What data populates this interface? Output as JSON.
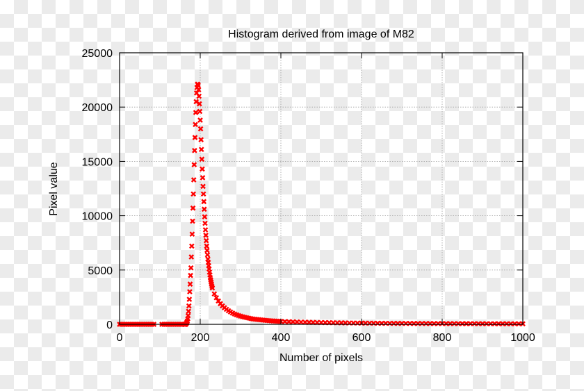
{
  "chart_data": {
    "type": "scatter",
    "title": "Histogram derived from image of M82",
    "xlabel": "Number of pixels",
    "ylabel": "Pixel value",
    "xlim": [
      0,
      1000
    ],
    "ylim": [
      0,
      25000
    ],
    "xticks": [
      0,
      200,
      400,
      600,
      800,
      1000
    ],
    "yticks": [
      0,
      5000,
      10000,
      15000,
      20000,
      25000
    ],
    "xtick_labels": [
      "0",
      "200",
      "400",
      "600",
      "800",
      "1000"
    ],
    "ytick_labels": [
      "0",
      "5000",
      "10000",
      "15000",
      "20000",
      "25000"
    ],
    "grid": true,
    "marker": "x",
    "color": "#ff0000",
    "points": [
      [
        0,
        0
      ],
      [
        5,
        0
      ],
      [
        10,
        0
      ],
      [
        15,
        0
      ],
      [
        20,
        0
      ],
      [
        25,
        0
      ],
      [
        30,
        0
      ],
      [
        35,
        0
      ],
      [
        40,
        0
      ],
      [
        45,
        0
      ],
      [
        50,
        0
      ],
      [
        55,
        0
      ],
      [
        60,
        0
      ],
      [
        65,
        0
      ],
      [
        70,
        0
      ],
      [
        75,
        0
      ],
      [
        80,
        0
      ],
      [
        85,
        0
      ],
      [
        105,
        0
      ],
      [
        110,
        0
      ],
      [
        115,
        0
      ],
      [
        120,
        0
      ],
      [
        125,
        0
      ],
      [
        130,
        0
      ],
      [
        135,
        0
      ],
      [
        140,
        0
      ],
      [
        145,
        0
      ],
      [
        150,
        0
      ],
      [
        155,
        0
      ],
      [
        160,
        0
      ],
      [
        161,
        0
      ],
      [
        162,
        0
      ],
      [
        163,
        0
      ],
      [
        164,
        0
      ],
      [
        165,
        50
      ],
      [
        166,
        100
      ],
      [
        167,
        200
      ],
      [
        168,
        300
      ],
      [
        169,
        500
      ],
      [
        170,
        800
      ],
      [
        171,
        1200
      ],
      [
        172,
        1700
      ],
      [
        173,
        2300
      ],
      [
        174,
        3000
      ],
      [
        175,
        3700
      ],
      [
        176,
        4500
      ],
      [
        177,
        5200
      ],
      [
        178,
        6200
      ],
      [
        179,
        7200
      ],
      [
        180,
        8300
      ],
      [
        181,
        9500
      ],
      [
        182,
        10700
      ],
      [
        183,
        12000
      ],
      [
        184,
        13300
      ],
      [
        185,
        14700
      ],
      [
        186,
        16000
      ],
      [
        187,
        17200
      ],
      [
        188,
        18400
      ],
      [
        189,
        19500
      ],
      [
        190,
        20500
      ],
      [
        191,
        21300
      ],
      [
        192,
        21800
      ],
      [
        193,
        22100
      ],
      [
        194,
        22100
      ],
      [
        195,
        22000
      ],
      [
        196,
        21600
      ],
      [
        197,
        21000
      ],
      [
        198,
        20300
      ],
      [
        199,
        19600
      ],
      [
        200,
        18800
      ],
      [
        201,
        18000
      ],
      [
        202,
        17000
      ],
      [
        203,
        16100
      ],
      [
        204,
        15200
      ],
      [
        205,
        14300
      ],
      [
        206,
        13500
      ],
      [
        207,
        12700
      ],
      [
        208,
        12000
      ],
      [
        209,
        11300
      ],
      [
        210,
        10600
      ],
      [
        211,
        9900
      ],
      [
        212,
        9300
      ],
      [
        213,
        8700
      ],
      [
        214,
        8200
      ],
      [
        215,
        7700
      ],
      [
        216,
        7200
      ],
      [
        217,
        6800
      ],
      [
        218,
        6400
      ],
      [
        219,
        6000
      ],
      [
        220,
        5700
      ],
      [
        221,
        5400
      ],
      [
        222,
        5100
      ],
      [
        223,
        4800
      ],
      [
        224,
        4550
      ],
      [
        225,
        4300
      ],
      [
        226,
        4100
      ],
      [
        227,
        3900
      ],
      [
        228,
        3700
      ],
      [
        229,
        3500
      ],
      [
        230,
        3350
      ],
      [
        235,
        2800
      ],
      [
        240,
        2450
      ],
      [
        245,
        2150
      ],
      [
        250,
        1900
      ],
      [
        255,
        1700
      ],
      [
        260,
        1530
      ],
      [
        265,
        1380
      ],
      [
        270,
        1250
      ],
      [
        275,
        1140
      ],
      [
        280,
        1040
      ],
      [
        285,
        950
      ],
      [
        290,
        880
      ],
      [
        295,
        810
      ],
      [
        300,
        750
      ],
      [
        305,
        700
      ],
      [
        310,
        650
      ],
      [
        315,
        610
      ],
      [
        320,
        570
      ],
      [
        325,
        535
      ],
      [
        330,
        500
      ],
      [
        335,
        475
      ],
      [
        340,
        450
      ],
      [
        345,
        430
      ],
      [
        350,
        410
      ],
      [
        355,
        390
      ],
      [
        360,
        370
      ],
      [
        365,
        355
      ],
      [
        370,
        340
      ],
      [
        375,
        325
      ],
      [
        380,
        310
      ],
      [
        385,
        300
      ],
      [
        390,
        290
      ],
      [
        395,
        280
      ],
      [
        400,
        270
      ],
      [
        410,
        255
      ],
      [
        420,
        240
      ],
      [
        430,
        228
      ],
      [
        440,
        216
      ],
      [
        450,
        205
      ],
      [
        460,
        195
      ],
      [
        470,
        186
      ],
      [
        480,
        178
      ],
      [
        490,
        170
      ],
      [
        500,
        163
      ],
      [
        510,
        156
      ],
      [
        520,
        150
      ],
      [
        530,
        144
      ],
      [
        540,
        139
      ],
      [
        550,
        134
      ],
      [
        560,
        129
      ],
      [
        570,
        125
      ],
      [
        580,
        121
      ],
      [
        590,
        117
      ],
      [
        600,
        113
      ],
      [
        610,
        110
      ],
      [
        620,
        107
      ],
      [
        630,
        104
      ],
      [
        640,
        101
      ],
      [
        650,
        98
      ],
      [
        660,
        95
      ],
      [
        670,
        93
      ],
      [
        680,
        91
      ],
      [
        690,
        89
      ],
      [
        700,
        87
      ],
      [
        710,
        85
      ],
      [
        720,
        83
      ],
      [
        730,
        81
      ],
      [
        740,
        79
      ],
      [
        750,
        78
      ],
      [
        760,
        76
      ],
      [
        770,
        75
      ],
      [
        780,
        73
      ],
      [
        790,
        72
      ],
      [
        800,
        70
      ],
      [
        810,
        69
      ],
      [
        820,
        68
      ],
      [
        830,
        67
      ],
      [
        840,
        66
      ],
      [
        850,
        65
      ],
      [
        860,
        64
      ],
      [
        870,
        63
      ],
      [
        880,
        62
      ],
      [
        890,
        61
      ],
      [
        900,
        60
      ],
      [
        910,
        59
      ],
      [
        920,
        58
      ],
      [
        930,
        57
      ],
      [
        940,
        56
      ],
      [
        950,
        55
      ],
      [
        960,
        54
      ],
      [
        970,
        53
      ],
      [
        980,
        52
      ],
      [
        990,
        51
      ],
      [
        1000,
        50
      ]
    ]
  }
}
